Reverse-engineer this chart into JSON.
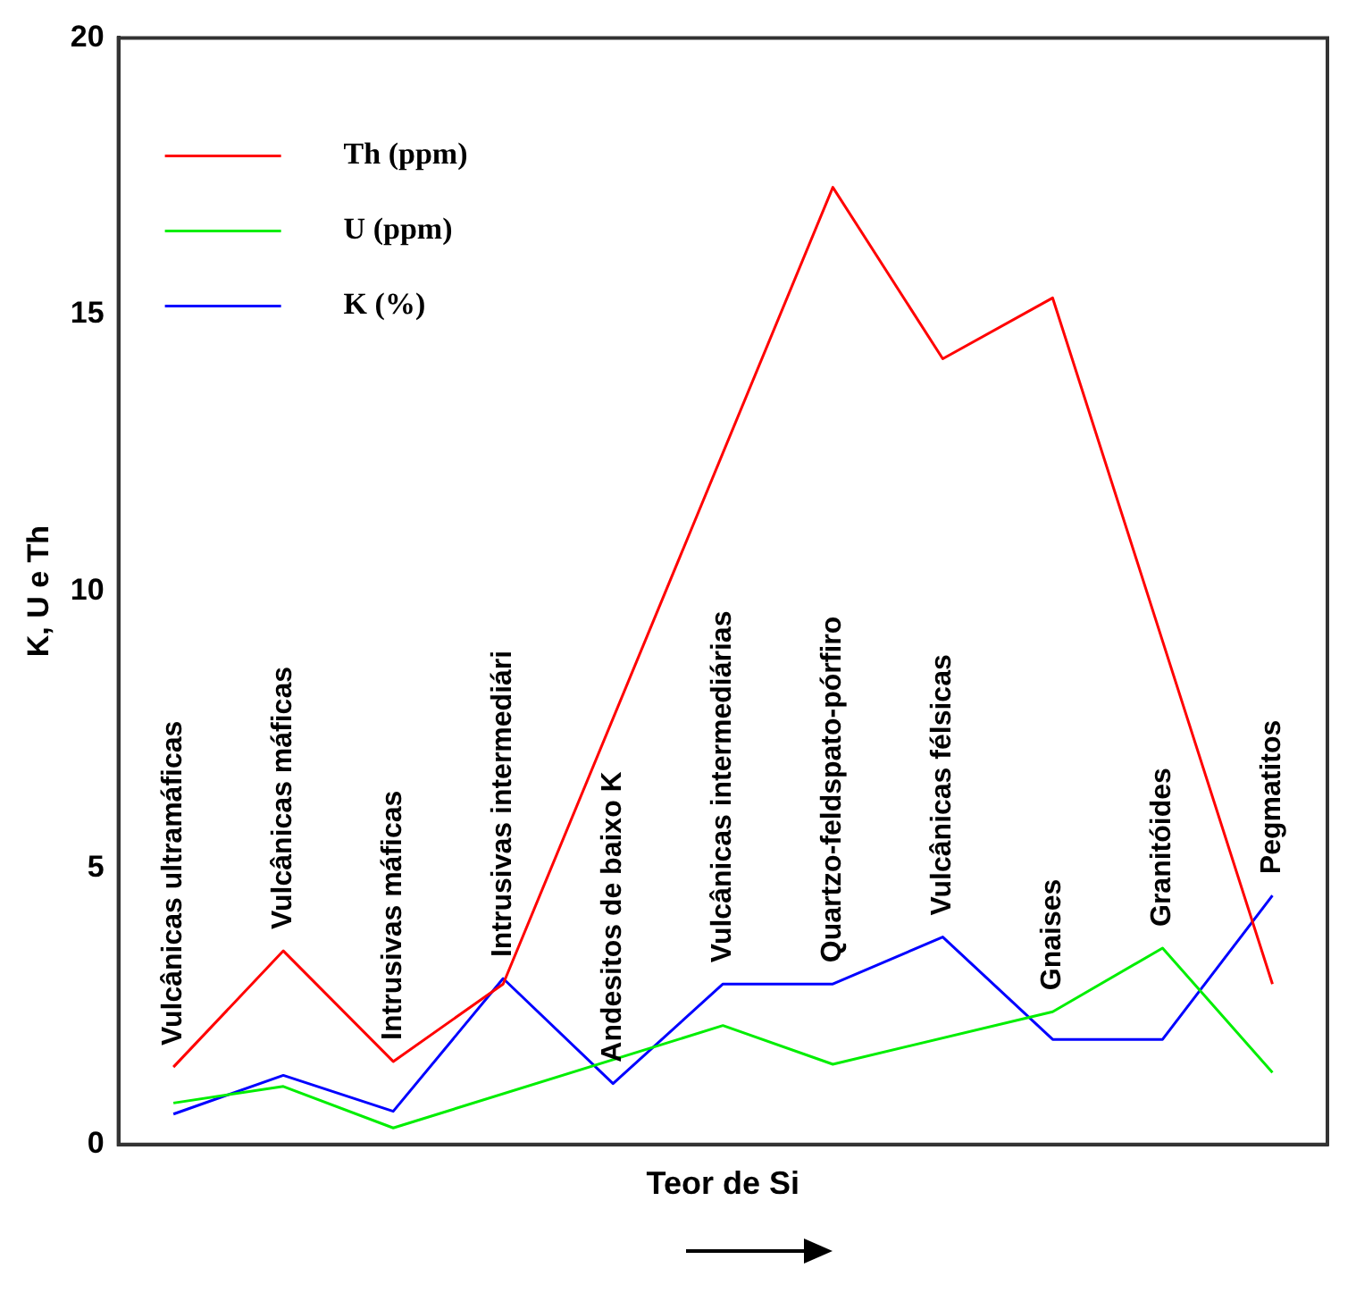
{
  "chart_data": {
    "type": "line",
    "xlabel": "Teor de Si",
    "ylabel": "K, U e Th",
    "categories": [
      "Vulcânicas ultramáficas",
      "Vulcânicas máficas",
      "Intrusivas máficas",
      "Intrusivas intermediári",
      "Andesitos de baixo K",
      "Vulcânicas intermediárias",
      "Quartzo-feldspato-pórfiro",
      "Vulcânicas félsicas",
      "Gnaises",
      "Granitóides",
      "Pegmatitos"
    ],
    "series": [
      {
        "name": "Th (ppm)",
        "color": "#ff0000",
        "values": [
          1.4,
          3.5,
          1.5,
          2.9,
          null,
          null,
          17.3,
          14.2,
          15.3,
          null,
          2.9
        ]
      },
      {
        "name": "U (ppm)",
        "color": "#00ee00",
        "values": [
          0.75,
          1.05,
          0.3,
          null,
          null,
          2.15,
          1.45,
          null,
          2.4,
          3.55,
          1.3
        ]
      },
      {
        "name": "K (%)",
        "color": "#0000ff",
        "values": [
          0.55,
          1.25,
          0.6,
          3.0,
          1.1,
          2.9,
          2.9,
          3.75,
          1.9,
          1.9,
          4.5
        ]
      }
    ],
    "ylim": [
      0,
      20
    ],
    "yticks": [
      0,
      5,
      10,
      15,
      20
    ],
    "grid": false,
    "legend": "top left",
    "marker": "none",
    "line_style": "solid",
    "tick_labels": "y"
  }
}
